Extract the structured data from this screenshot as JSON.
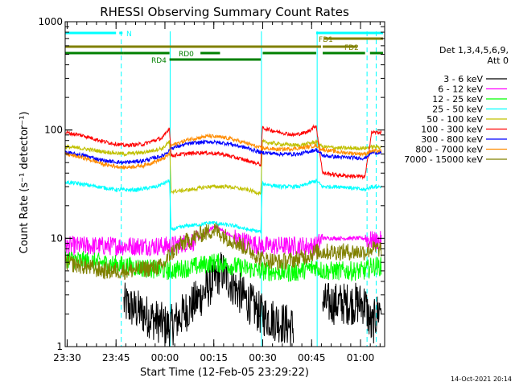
{
  "chart_data": {
    "type": "line",
    "title": "RHESSI Observing Summary Count Rates",
    "xlabel": "Start Time (12-Feb-05 23:29:22)",
    "ylabel": "Count Rate (s⁻¹ detector⁻¹)",
    "yscale": "log",
    "ylim": [
      1,
      1000
    ],
    "xlim_minutes": [
      0,
      98
    ],
    "x_tick_labels": [
      {
        "minute": 0.6,
        "label": "23:30"
      },
      {
        "minute": 15.6,
        "label": "23:45"
      },
      {
        "minute": 30.6,
        "label": "00:00"
      },
      {
        "minute": 45.6,
        "label": "00:15"
      },
      {
        "minute": 60.6,
        "label": "00:30"
      },
      {
        "minute": 75.6,
        "label": "00:45"
      },
      {
        "minute": 90.6,
        "label": "01:00"
      }
    ],
    "y_tick_labels": [
      {
        "value": 1,
        "label": "1"
      },
      {
        "value": 10,
        "label": "10"
      },
      {
        "value": 100,
        "label": "100"
      },
      {
        "value": 1000,
        "label": "1000"
      }
    ],
    "legend": {
      "header": [
        "Det 1,3,4,5,6,9,",
        "Att 0"
      ],
      "position": "right"
    },
    "series": [
      {
        "name": "3 - 6 keV",
        "color": "#000000",
        "x": [
          0,
          17,
          18,
          32,
          42,
          48,
          54,
          60,
          70,
          77,
          79,
          92,
          94,
          97
        ],
        "y": [
          null,
          null,
          2.5,
          1.5,
          3.0,
          5.0,
          3.0,
          2.0,
          1.5,
          null,
          2.5,
          2.5,
          1.5,
          2.5
        ]
      },
      {
        "name": "6 - 12 keV",
        "color": "#ff00ff",
        "x": [
          0,
          32,
          40,
          46,
          52,
          60,
          70,
          77,
          79,
          92,
          94,
          97
        ],
        "y": [
          8.5,
          8.5,
          9.5,
          13.0,
          10.0,
          8.5,
          8.5,
          8.5,
          10.0,
          10.0,
          9.5,
          9.5
        ]
      },
      {
        "name": "12 - 25 keV",
        "color": "#00ff00",
        "x": [
          0,
          32,
          40,
          46,
          52,
          60,
          70,
          77,
          79,
          92,
          94,
          97
        ],
        "y": [
          6.5,
          5.0,
          5.5,
          6.0,
          5.5,
          5.0,
          4.8,
          5.5,
          5.0,
          5.0,
          5.5,
          5.5
        ]
      },
      {
        "name": "25 - 50 keV",
        "color": "#00ffff",
        "x": [
          0,
          4,
          10,
          16,
          22,
          28,
          32,
          32.5,
          37,
          42,
          45,
          48,
          52,
          56,
          60,
          60.5,
          66,
          72,
          77,
          79,
          85,
          92,
          94,
          97
        ],
        "y": [
          33,
          32,
          30,
          28,
          28,
          30,
          34,
          12.0,
          13.0,
          13.5,
          14.0,
          13.5,
          13.0,
          12.0,
          11.5,
          32,
          30,
          30,
          34,
          30,
          30,
          28,
          30,
          30
        ]
      },
      {
        "name": "50 - 100 keV",
        "color": "#c0c000",
        "x": [
          0,
          6,
          12,
          18,
          24,
          30,
          32,
          32.5,
          38,
          44,
          50,
          56,
          60,
          60.5,
          66,
          72,
          77,
          79,
          85,
          92,
          94,
          97
        ],
        "y": [
          70,
          67,
          63,
          60,
          62,
          68,
          78,
          27,
          28,
          30,
          30,
          28,
          26,
          78,
          74,
          72,
          78,
          70,
          68,
          68,
          70,
          70
        ]
      },
      {
        "name": "100 - 300 keV",
        "color": "#ff0000",
        "x": [
          0,
          6,
          12,
          18,
          24,
          30,
          32,
          32.5,
          36,
          42,
          48,
          54,
          58,
          60,
          60.5,
          64,
          70,
          74,
          77,
          79,
          85,
          92,
          94,
          97
        ],
        "y": [
          95,
          88,
          78,
          72,
          74,
          85,
          105,
          58,
          60,
          62,
          60,
          54,
          50,
          48,
          105,
          98,
          90,
          95,
          110,
          40,
          38,
          37,
          95,
          95
        ]
      },
      {
        "name": "300 - 800 keV",
        "color": "#0000ff",
        "x": [
          0,
          6,
          12,
          18,
          24,
          30,
          32,
          32.5,
          38,
          44,
          50,
          56,
          60,
          60.5,
          66,
          72,
          77,
          79,
          85,
          92,
          94,
          97
        ],
        "y": [
          62,
          58,
          52,
          50,
          52,
          58,
          65,
          68,
          75,
          78,
          75,
          68,
          62,
          62,
          60,
          60,
          66,
          58,
          56,
          55,
          62,
          62
        ]
      },
      {
        "name": "800 - 7000 keV",
        "color": "#ff8c00",
        "x": [
          0,
          6,
          12,
          18,
          24,
          30,
          32,
          32.5,
          38,
          44,
          50,
          56,
          60,
          60.5,
          66,
          72,
          77,
          79,
          85,
          92,
          94,
          97
        ],
        "y": [
          60,
          55,
          48,
          45,
          47,
          54,
          60,
          72,
          82,
          88,
          84,
          75,
          68,
          68,
          66,
          68,
          72,
          66,
          62,
          60,
          64,
          64
        ]
      },
      {
        "name": "7000 - 15000 keV",
        "color": "#808000",
        "x": [
          0,
          6,
          12,
          18,
          24,
          30,
          32,
          36,
          42,
          46,
          50,
          56,
          60,
          66,
          72,
          77,
          79,
          85,
          92,
          94,
          97
        ],
        "y": [
          6.0,
          5.5,
          5.0,
          5.0,
          5.2,
          5.5,
          7.0,
          9.0,
          11.0,
          12.0,
          10.0,
          8.0,
          6.5,
          6.0,
          6.5,
          7.5,
          7.5,
          7.5,
          7.5,
          8.0,
          8.0
        ]
      }
    ],
    "flag_bars": [
      {
        "label": "N",
        "color": "#00ffff",
        "segments": [
          [
            0,
            15.6
          ],
          [
            16.6,
            17.6
          ]
        ]
      },
      {
        "label": "",
        "color": "#00ffff",
        "segments": [
          [
            77,
            97.5
          ]
        ]
      },
      {
        "label": "FD1",
        "color": "#808000",
        "segments": [
          [
            79.5,
            97.5
          ]
        ]
      },
      {
        "label": "FD2",
        "color": "#808000",
        "segments": [
          [
            0,
            78.5
          ],
          [
            79,
            89.5
          ]
        ]
      },
      {
        "label": "RD0",
        "color": "#008000",
        "segments": [
          [
            0,
            18
          ],
          [
            18,
            32
          ],
          [
            41.5,
            47.5
          ],
          [
            60.6,
            77
          ],
          [
            79,
            92
          ],
          [
            93.5,
            97.5
          ]
        ]
      },
      {
        "label": "RD4",
        "color": "#008000",
        "segments": [
          [
            32,
            60
          ]
        ]
      }
    ],
    "vlines_minutes": [
      {
        "x": 17.2,
        "style": "dashed",
        "color": "#00ffff"
      },
      {
        "x": 32.2,
        "style": "solid",
        "color": "#00ffff"
      },
      {
        "x": 60.2,
        "style": "solid",
        "color": "#00ffff"
      },
      {
        "x": 77.3,
        "style": "solid",
        "color": "#00ffff"
      },
      {
        "x": 92.6,
        "style": "dashed",
        "color": "#00ffff"
      },
      {
        "x": 95.4,
        "style": "dashed",
        "color": "#00ffff"
      }
    ]
  },
  "footer": {
    "timestamp": "14-Oct-2021 20:14"
  }
}
